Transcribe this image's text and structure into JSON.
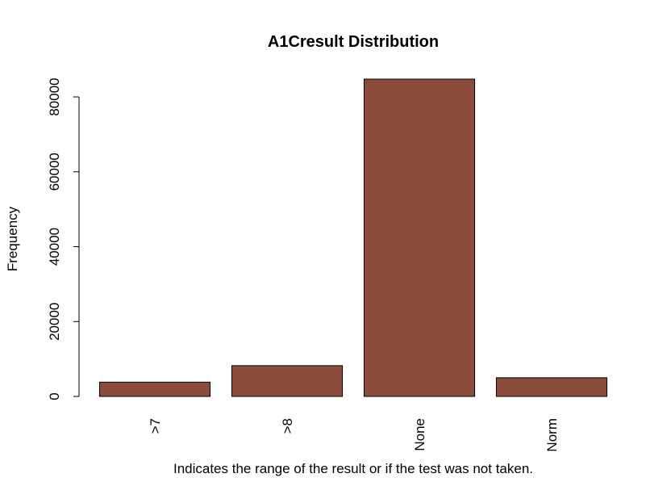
{
  "chart_data": {
    "type": "bar",
    "title": "A1Cresult Distribution",
    "xlabel": "Indicates the range of the result or if the test was not taken.",
    "ylabel": "Frequency",
    "categories": [
      ">7",
      ">8",
      "None",
      "Norm"
    ],
    "values": [
      3812,
      8216,
      84748,
      4990
    ],
    "ylim": [
      0,
      84748
    ],
    "yticks": [
      0,
      20000,
      40000,
      60000,
      80000
    ],
    "bar_color": "#8B4C3B",
    "grid": false,
    "legend": "none"
  }
}
